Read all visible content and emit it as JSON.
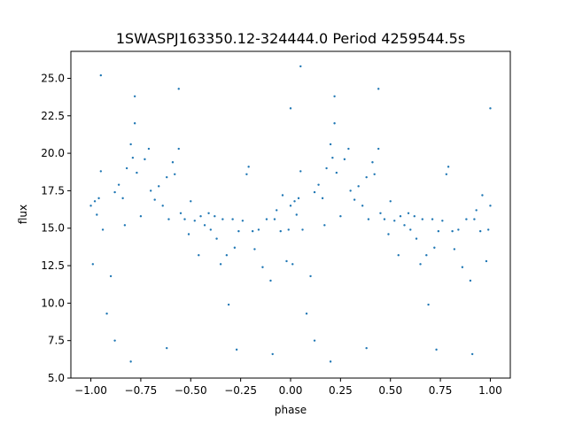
{
  "chart_data": {
    "type": "scatter",
    "title": "1SWASPJ163350.12-324444.0 Period 4259544.5s",
    "xlabel": "phase",
    "ylabel": "flux",
    "xlim": [
      -1.1,
      1.1
    ],
    "ylim": [
      5.0,
      26.8
    ],
    "xticks": [
      -1.0,
      -0.75,
      -0.5,
      -0.25,
      0.0,
      0.25,
      0.5,
      0.75,
      1.0
    ],
    "xtick_labels": [
      "−1.00",
      "−0.75",
      "−0.50",
      "−0.25",
      "0.00",
      "0.25",
      "0.50",
      "0.75",
      "1.00"
    ],
    "yticks": [
      5.0,
      7.5,
      10.0,
      12.5,
      15.0,
      17.5,
      20.0,
      22.5,
      25.0
    ],
    "ytick_labels": [
      "5.0",
      "7.5",
      "10.0",
      "12.5",
      "15.0",
      "17.5",
      "20.0",
      "22.5",
      "25.0"
    ],
    "grid": false,
    "marker_color": "#1f77b4",
    "series": [
      {
        "values": [
          [
            -1.0,
            16.5
          ],
          [
            -0.99,
            12.6
          ],
          [
            -0.98,
            16.8
          ],
          [
            -0.97,
            15.9
          ],
          [
            -0.96,
            17.0
          ],
          [
            -0.95,
            18.8
          ],
          [
            -0.94,
            14.9
          ],
          [
            -0.92,
            9.3
          ],
          [
            -0.9,
            11.8
          ],
          [
            -0.88,
            17.4
          ],
          [
            -0.86,
            17.9
          ],
          [
            -0.84,
            17.0
          ],
          [
            -0.83,
            15.2
          ],
          [
            -0.82,
            19.0
          ],
          [
            -0.8,
            20.6
          ],
          [
            -0.79,
            19.7
          ],
          [
            -0.78,
            22.0
          ],
          [
            -0.77,
            18.7
          ],
          [
            -0.75,
            15.8
          ],
          [
            -0.73,
            19.6
          ],
          [
            -0.71,
            20.3
          ],
          [
            -0.7,
            17.5
          ],
          [
            -0.68,
            16.9
          ],
          [
            -0.66,
            17.8
          ],
          [
            -0.64,
            16.5
          ],
          [
            -0.62,
            18.4
          ],
          [
            -0.61,
            15.6
          ],
          [
            -0.59,
            19.4
          ],
          [
            -0.58,
            18.6
          ],
          [
            -0.56,
            20.3
          ],
          [
            -0.55,
            16.0
          ],
          [
            -0.53,
            15.6
          ],
          [
            -0.51,
            14.6
          ],
          [
            -0.5,
            16.8
          ],
          [
            -0.48,
            15.5
          ],
          [
            -0.46,
            13.2
          ],
          [
            -0.45,
            15.8
          ],
          [
            -0.43,
            15.2
          ],
          [
            -0.41,
            16.0
          ],
          [
            -0.4,
            14.9
          ],
          [
            -0.38,
            15.8
          ],
          [
            -0.37,
            14.3
          ],
          [
            -0.35,
            12.6
          ],
          [
            -0.34,
            15.6
          ],
          [
            -0.32,
            13.2
          ],
          [
            -0.31,
            9.9
          ],
          [
            -0.29,
            15.6
          ],
          [
            -0.28,
            13.7
          ],
          [
            -0.26,
            14.8
          ],
          [
            -0.24,
            15.5
          ],
          [
            -0.22,
            18.6
          ],
          [
            -0.21,
            19.1
          ],
          [
            -0.19,
            14.8
          ],
          [
            -0.18,
            13.6
          ],
          [
            -0.16,
            14.9
          ],
          [
            -0.14,
            12.4
          ],
          [
            -0.12,
            15.6
          ],
          [
            -0.1,
            11.5
          ],
          [
            -0.08,
            15.6
          ],
          [
            -0.07,
            16.2
          ],
          [
            -0.05,
            14.8
          ],
          [
            -0.04,
            17.2
          ],
          [
            -0.02,
            12.8
          ],
          [
            -0.01,
            14.9
          ],
          [
            0.0,
            16.5
          ],
          [
            0.01,
            12.6
          ],
          [
            0.02,
            16.8
          ],
          [
            0.03,
            15.9
          ],
          [
            0.04,
            17.0
          ],
          [
            0.05,
            18.8
          ],
          [
            0.06,
            14.9
          ],
          [
            0.08,
            9.3
          ],
          [
            0.1,
            11.8
          ],
          [
            0.12,
            17.4
          ],
          [
            0.14,
            17.9
          ],
          [
            0.16,
            17.0
          ],
          [
            0.17,
            15.2
          ],
          [
            0.18,
            19.0
          ],
          [
            0.2,
            20.6
          ],
          [
            0.21,
            19.7
          ],
          [
            0.22,
            22.0
          ],
          [
            0.23,
            18.7
          ],
          [
            0.25,
            15.8
          ],
          [
            0.27,
            19.6
          ],
          [
            0.29,
            20.3
          ],
          [
            0.3,
            17.5
          ],
          [
            0.32,
            16.9
          ],
          [
            0.34,
            17.8
          ],
          [
            0.36,
            16.5
          ],
          [
            0.38,
            18.4
          ],
          [
            0.39,
            15.6
          ],
          [
            0.41,
            19.4
          ],
          [
            0.42,
            18.6
          ],
          [
            0.44,
            20.3
          ],
          [
            0.45,
            16.0
          ],
          [
            0.47,
            15.6
          ],
          [
            0.49,
            14.6
          ],
          [
            0.5,
            16.8
          ],
          [
            0.52,
            15.5
          ],
          [
            0.54,
            13.2
          ],
          [
            0.55,
            15.8
          ],
          [
            0.57,
            15.2
          ],
          [
            0.59,
            16.0
          ],
          [
            0.6,
            14.9
          ],
          [
            0.62,
            15.8
          ],
          [
            0.63,
            14.3
          ],
          [
            0.65,
            12.6
          ],
          [
            0.66,
            15.6
          ],
          [
            0.68,
            13.2
          ],
          [
            0.69,
            9.9
          ],
          [
            0.71,
            15.6
          ],
          [
            0.72,
            13.7
          ],
          [
            0.74,
            14.8
          ],
          [
            0.76,
            15.5
          ],
          [
            0.78,
            18.6
          ],
          [
            0.79,
            19.1
          ],
          [
            0.81,
            14.8
          ],
          [
            0.82,
            13.6
          ],
          [
            0.84,
            14.9
          ],
          [
            0.86,
            12.4
          ],
          [
            0.88,
            15.6
          ],
          [
            0.9,
            11.5
          ],
          [
            0.92,
            15.6
          ],
          [
            0.93,
            16.2
          ],
          [
            0.95,
            14.8
          ],
          [
            0.96,
            17.2
          ],
          [
            0.98,
            12.8
          ],
          [
            0.99,
            14.9
          ],
          [
            1.0,
            16.5
          ],
          [
            -0.95,
            25.2
          ],
          [
            -0.78,
            23.8
          ],
          [
            -0.56,
            24.3
          ],
          [
            0.0,
            23.0
          ],
          [
            0.05,
            25.8
          ],
          [
            0.22,
            23.8
          ],
          [
            0.44,
            24.3
          ],
          [
            1.0,
            23.0
          ],
          [
            -0.8,
            6.1
          ],
          [
            -0.62,
            7.0
          ],
          [
            -0.27,
            6.9
          ],
          [
            -0.09,
            6.6
          ],
          [
            0.2,
            6.1
          ],
          [
            0.38,
            7.0
          ],
          [
            0.73,
            6.9
          ],
          [
            0.91,
            6.6
          ],
          [
            -0.88,
            7.5
          ],
          [
            0.12,
            7.5
          ]
        ]
      }
    ]
  }
}
